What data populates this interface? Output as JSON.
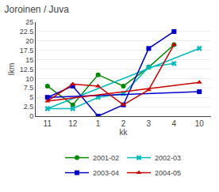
{
  "chart_data": {
    "type": "line",
    "title": "Joroinen / Juva",
    "xlabel": "kk",
    "ylabel": "lkm",
    "categories": [
      "10",
      "11",
      "12",
      "1",
      "2",
      "3",
      "4"
    ],
    "series": [
      {
        "name": "2001-02",
        "color": "#008800",
        "marker": "circle",
        "values": [
          null,
          8,
          3,
          11,
          8,
          13,
          19
        ]
      },
      {
        "name": "2002-03",
        "color": "#00bbbb",
        "marker": "x",
        "values": [
          18,
          2,
          2,
          5,
          6,
          13,
          14
        ]
      },
      {
        "name": "2003-04",
        "color": "#0000cc",
        "marker": "square",
        "values": [
          6.5,
          5,
          8,
          0,
          3,
          18,
          22.5
        ]
      },
      {
        "name": "2004-05",
        "color": "#cc0000",
        "marker": "triangle-up",
        "values": [
          9,
          4,
          8.5,
          8,
          3,
          7,
          19
        ]
      }
    ],
    "ylim": [
      0,
      25
    ],
    "yticks": [
      0,
      2.5,
      5,
      7.5,
      10,
      12.5,
      15,
      17.5,
      20,
      22.5,
      25
    ],
    "grid": true,
    "legend": "bottom"
  }
}
